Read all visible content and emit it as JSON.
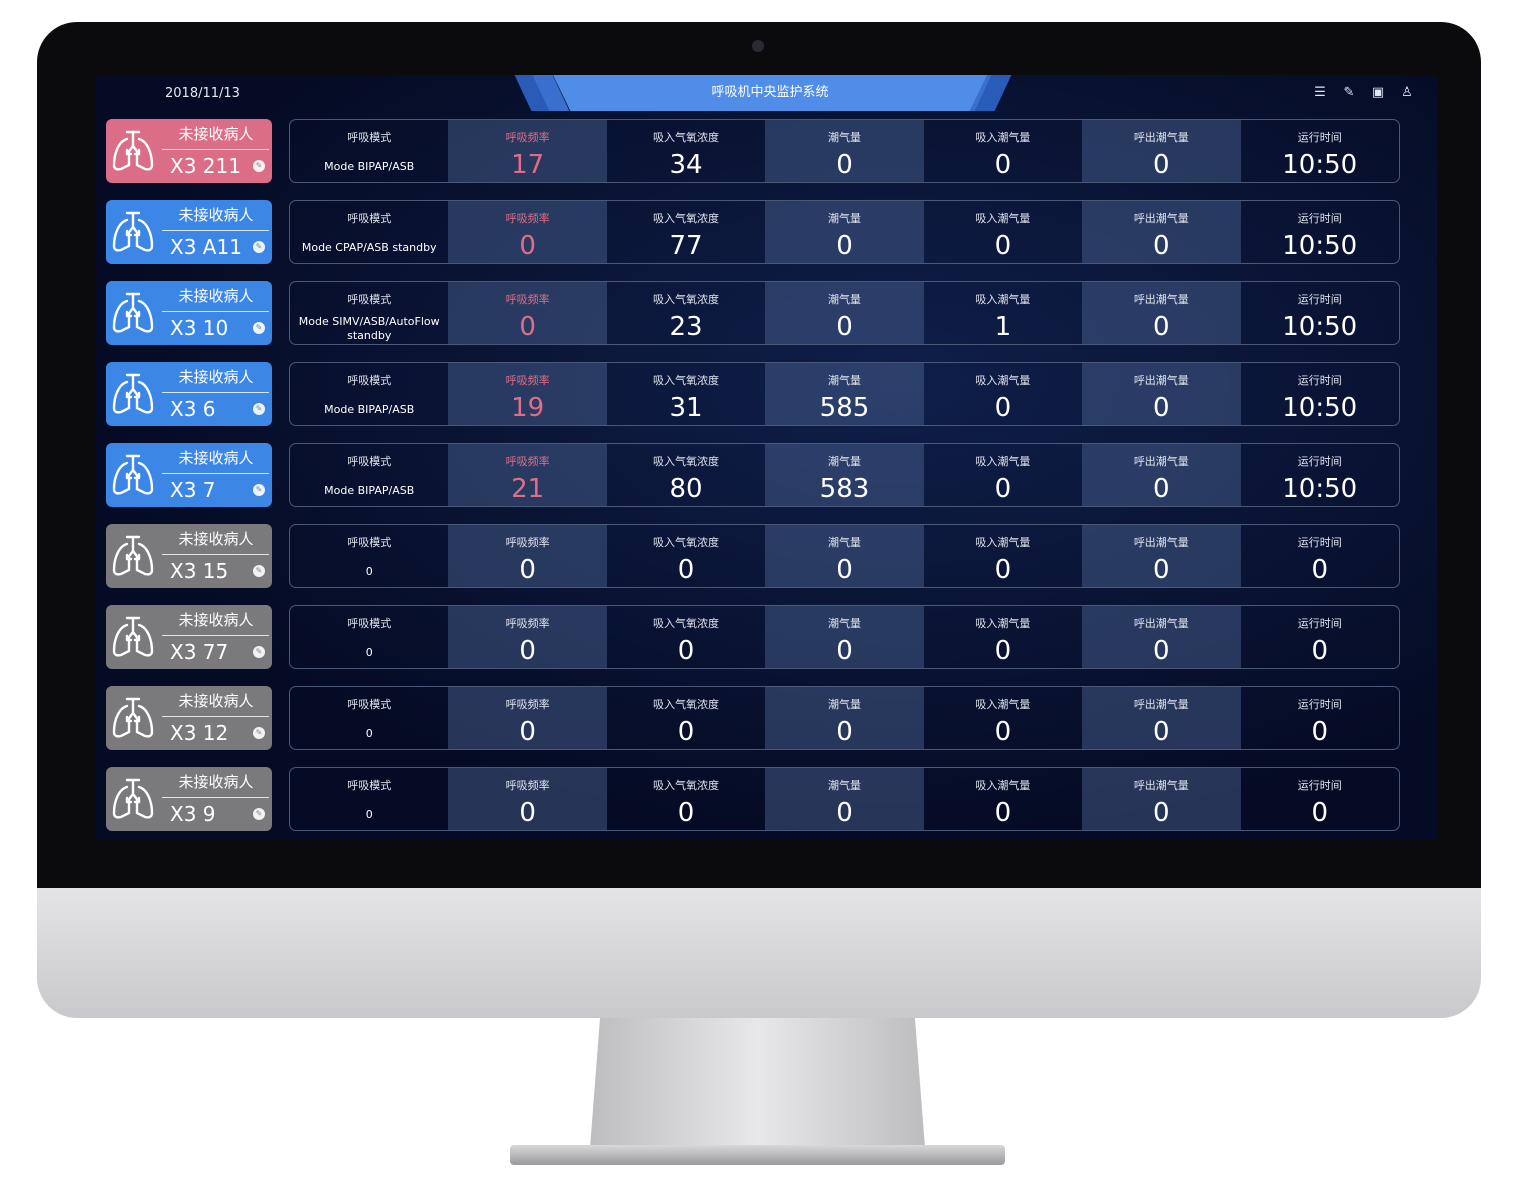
{
  "header": {
    "date": "2018/11/13",
    "title": "呼吸机中央监护系统",
    "icons": [
      "menu-list-icon",
      "edit-icon",
      "layout-icon",
      "user-icon"
    ]
  },
  "labels": [
    "呼吸模式",
    "呼吸频率",
    "吸入气氧浓度",
    "潮气量",
    "吸入潮气量",
    "呼出潮气量",
    "运行时间"
  ],
  "colors": {
    "pink": "#dc6d86",
    "blue": "#3c86e6",
    "gray": "#7a7a7c",
    "alert_text": "#e06d88"
  },
  "rows": [
    {
      "status": "pink",
      "name": "未接收病人",
      "bed": "X3 211",
      "mode": "Mode BIPAP/ASB",
      "values": [
        "17",
        "34",
        "0",
        "0",
        "0",
        "10:50"
      ],
      "active": true
    },
    {
      "status": "blue",
      "name": "未接收病人",
      "bed": "X3 A11",
      "mode": "Mode CPAP/ASB standby",
      "values": [
        "0",
        "77",
        "0",
        "0",
        "0",
        "10:50"
      ],
      "active": true
    },
    {
      "status": "blue",
      "name": "未接收病人",
      "bed": "X3 10",
      "mode": "Mode SIMV/ASB/AutoFlow standby",
      "values": [
        "0",
        "23",
        "0",
        "1",
        "0",
        "10:50"
      ],
      "active": true
    },
    {
      "status": "blue",
      "name": "未接收病人",
      "bed": "X3 6",
      "mode": "Mode BIPAP/ASB",
      "values": [
        "19",
        "31",
        "585",
        "0",
        "0",
        "10:50"
      ],
      "active": true
    },
    {
      "status": "blue",
      "name": "未接收病人",
      "bed": "X3 7",
      "mode": "Mode BIPAP/ASB",
      "values": [
        "21",
        "80",
        "583",
        "0",
        "0",
        "10:50"
      ],
      "active": true
    },
    {
      "status": "gray",
      "name": "未接收病人",
      "bed": "X3 15",
      "mode": "0",
      "values": [
        "0",
        "0",
        "0",
        "0",
        "0",
        "0"
      ],
      "active": false
    },
    {
      "status": "gray",
      "name": "未接收病人",
      "bed": "X3 77",
      "mode": "0",
      "values": [
        "0",
        "0",
        "0",
        "0",
        "0",
        "0"
      ],
      "active": false
    },
    {
      "status": "gray",
      "name": "未接收病人",
      "bed": "X3 12",
      "mode": "0",
      "values": [
        "0",
        "0",
        "0",
        "0",
        "0",
        "0"
      ],
      "active": false
    },
    {
      "status": "gray",
      "name": "未接收病人",
      "bed": "X3 9",
      "mode": "0",
      "values": [
        "0",
        "0",
        "0",
        "0",
        "0",
        "0"
      ],
      "active": false
    }
  ]
}
